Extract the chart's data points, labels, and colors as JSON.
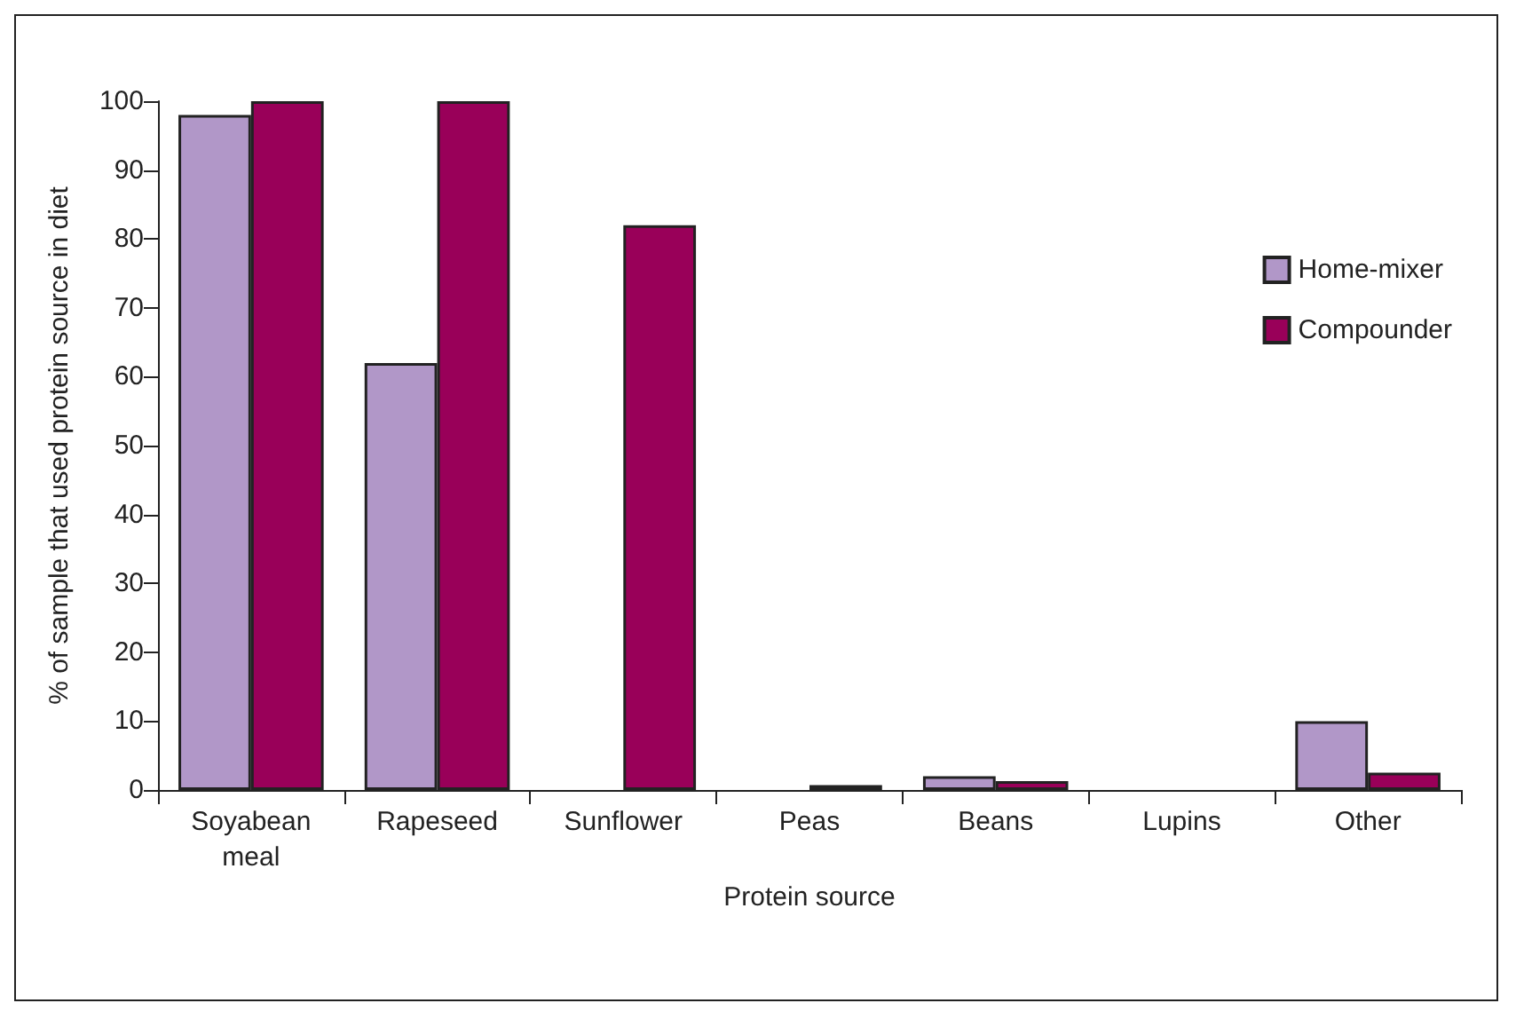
{
  "chart_data": {
    "type": "bar",
    "xlabel": "Protein source",
    "ylabel": "% of sample that used protein source in diet",
    "categories": [
      "Soyabean\nmeal",
      "Rapeseed",
      "Sunflower",
      "Peas",
      "Beans",
      "Lupins",
      "Other"
    ],
    "series": [
      {
        "name": "Home-mixer",
        "color": "#b197c8",
        "values": [
          98,
          62,
          0,
          0,
          2,
          0,
          10
        ]
      },
      {
        "name": "Compounder",
        "color": "#990059",
        "values": [
          100,
          100,
          82,
          0.7,
          1.3,
          0,
          2.5
        ]
      }
    ],
    "ylim": [
      0,
      100
    ],
    "yticks": [
      0,
      10,
      20,
      30,
      40,
      50,
      60,
      70,
      80,
      90,
      100
    ],
    "grid": false,
    "legend": "right"
  }
}
